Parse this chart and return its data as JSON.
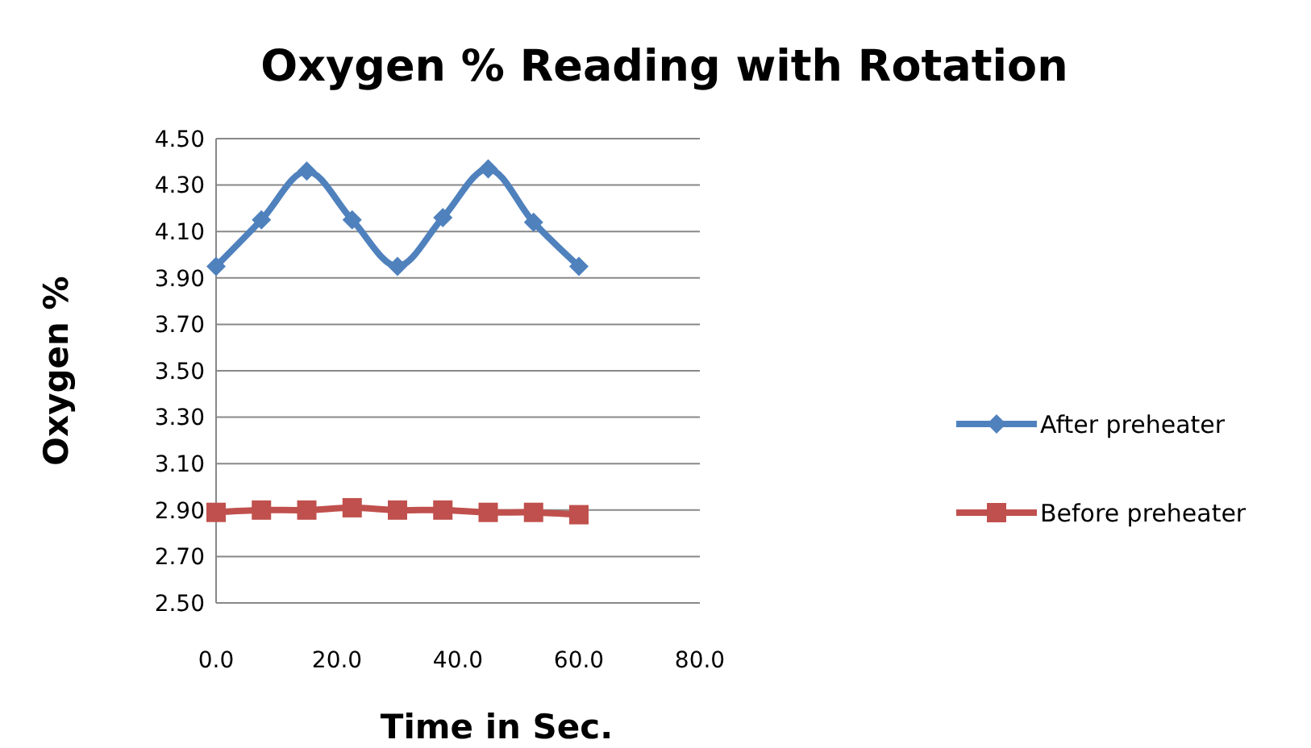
{
  "chart_data": {
    "type": "line",
    "title": "Oxygen % Reading with Rotation",
    "xlabel": "Time in Sec.",
    "ylabel": "Oxygen %",
    "x": [
      0,
      7.5,
      15,
      22.5,
      30,
      37.5,
      45,
      52.5,
      60
    ],
    "series": [
      {
        "name": "After preheater",
        "color": "#4f81bd",
        "marker": "diamond",
        "values": [
          3.95,
          4.15,
          4.36,
          4.15,
          3.95,
          4.16,
          4.37,
          4.14,
          3.95
        ]
      },
      {
        "name": "Before preheater",
        "color": "#c0504d",
        "marker": "square",
        "values": [
          2.89,
          2.9,
          2.9,
          2.91,
          2.9,
          2.9,
          2.89,
          2.89,
          2.88
        ]
      }
    ],
    "xlim": [
      0,
      80
    ],
    "xticks": [
      {
        "value": 0,
        "label": "0.0"
      },
      {
        "value": 20,
        "label": "20.0"
      },
      {
        "value": 40,
        "label": "40.0"
      },
      {
        "value": 60,
        "label": "60.0"
      },
      {
        "value": 80,
        "label": "80.0"
      }
    ],
    "ylim": [
      2.5,
      4.5
    ],
    "yticks": [
      {
        "value": 2.5,
        "label": "2.50"
      },
      {
        "value": 2.7,
        "label": "2.70"
      },
      {
        "value": 2.9,
        "label": "2.90"
      },
      {
        "value": 3.1,
        "label": "3.10"
      },
      {
        "value": 3.3,
        "label": "3.30"
      },
      {
        "value": 3.5,
        "label": "3.50"
      },
      {
        "value": 3.7,
        "label": "3.70"
      },
      {
        "value": 3.9,
        "label": "3.90"
      },
      {
        "value": 4.1,
        "label": "4.10"
      },
      {
        "value": 4.3,
        "label": "4.30"
      },
      {
        "value": 4.5,
        "label": "4.50"
      }
    ],
    "grid": "y",
    "legend": "right",
    "line_style": "solid"
  }
}
